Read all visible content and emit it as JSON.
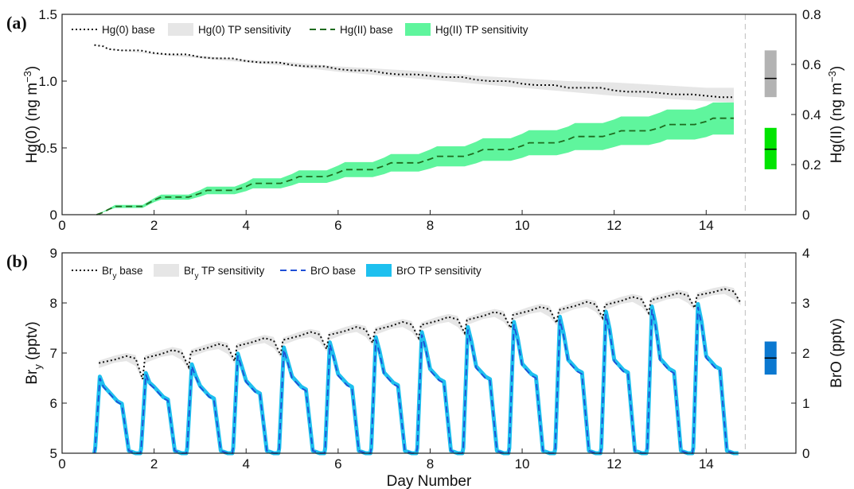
{
  "panels": [
    {
      "label": "(a)",
      "ylabel_left": "Hg(0) (ng m⁻³)",
      "ylabel_right": "Hg(II) (ng m⁻³)"
    },
    {
      "label": "(b)",
      "ylabel_left": "Br_y (pptv)",
      "ylabel_right": "BrO (pptv)"
    }
  ],
  "xlabel": "Day Number",
  "colors": {
    "hg0_base": "#111111",
    "hg0_sens": "#e6e6e6",
    "hg2_base": "#1e6b1e",
    "hg2_sens": "#5ff59d",
    "bry_base": "#111111",
    "bry_sens": "#e6e6e6",
    "bro_base": "#1f4fd6",
    "bro_sens": "#1ec0ef",
    "hg0_bar": "#b3b3b3",
    "hg2_bar": "#00e400",
    "bro_bar": "#0b78d0"
  },
  "chart_data": [
    {
      "type": "line",
      "xlim": [
        0,
        15.95
      ],
      "xticks": [
        0,
        2,
        4,
        6,
        8,
        10,
        12,
        14
      ],
      "ylim_left": [
        0,
        1.5
      ],
      "yticks_left": [
        "0",
        "0.5",
        "1.0",
        "1.5"
      ],
      "yticks_left_values": [
        0,
        0.5,
        1.0,
        1.5
      ],
      "ylim_right": [
        0,
        0.8
      ],
      "yticks_right": [
        "0",
        "0.2",
        "0.4",
        "0.6",
        "0.8"
      ],
      "yticks_right_values": [
        0,
        0.2,
        0.4,
        0.6,
        0.8
      ],
      "legend": [
        "Hg(0) base",
        "Hg(0) TP sensitivity",
        "Hg(II) base",
        "Hg(II) TP sensitivity"
      ],
      "legend_position": "top",
      "series": [
        {
          "name": "Hg(0) base",
          "axis": "left",
          "x": [
            0.7,
            0.9,
            1.0,
            1.3,
            1.7,
            2.0,
            2.3,
            2.7,
            3.0,
            3.3,
            3.7,
            4.0,
            4.3,
            4.7,
            5.0,
            5.3,
            5.7,
            6.0,
            6.3,
            6.7,
            7.0,
            7.3,
            7.7,
            8.0,
            8.3,
            8.7,
            9.0,
            9.3,
            9.7,
            10.0,
            10.3,
            10.7,
            11.0,
            11.3,
            11.7,
            12.0,
            12.3,
            12.7,
            13.0,
            13.3,
            13.7,
            14.0,
            14.3,
            14.6
          ],
          "y": [
            1.27,
            1.26,
            1.24,
            1.23,
            1.23,
            1.21,
            1.2,
            1.2,
            1.18,
            1.17,
            1.17,
            1.15,
            1.14,
            1.14,
            1.12,
            1.11,
            1.11,
            1.09,
            1.08,
            1.08,
            1.06,
            1.05,
            1.05,
            1.04,
            1.03,
            1.03,
            1.01,
            1.0,
            1.0,
            0.98,
            0.97,
            0.97,
            0.95,
            0.95,
            0.95,
            0.93,
            0.92,
            0.92,
            0.91,
            0.9,
            0.9,
            0.89,
            0.88,
            0.88
          ]
        },
        {
          "name": "Hg(0) TP sensitivity",
          "axis": "left",
          "band": true,
          "x": [
            0.7,
            1.0,
            2.0,
            3.0,
            4.0,
            5.0,
            6.0,
            7.0,
            8.0,
            9.0,
            10.0,
            11.0,
            12.0,
            13.0,
            14.0,
            14.6
          ],
          "low": [
            1.27,
            1.24,
            1.2,
            1.17,
            1.14,
            1.11,
            1.07,
            1.04,
            1.01,
            0.98,
            0.95,
            0.92,
            0.89,
            0.87,
            0.85,
            0.84
          ],
          "high": [
            1.27,
            1.24,
            1.21,
            1.19,
            1.16,
            1.14,
            1.11,
            1.09,
            1.07,
            1.04,
            1.02,
            1.0,
            0.99,
            0.97,
            0.95,
            0.95
          ]
        },
        {
          "name": "Hg(II) base",
          "axis": "right",
          "x": [
            0.75,
            0.9,
            1.0,
            1.15,
            1.75,
            2.0,
            2.15,
            2.75,
            3.0,
            3.15,
            3.75,
            4.0,
            4.15,
            4.75,
            5.0,
            5.15,
            5.75,
            6.0,
            6.15,
            6.75,
            7.0,
            7.15,
            7.75,
            8.0,
            8.15,
            8.75,
            9.0,
            9.15,
            9.75,
            10.0,
            10.15,
            10.75,
            11.0,
            11.15,
            11.75,
            12.0,
            12.15,
            12.75,
            13.0,
            13.15,
            13.75,
            14.0,
            14.15,
            14.6
          ],
          "y": [
            0.0,
            0.01,
            0.02,
            0.033,
            0.033,
            0.058,
            0.07,
            0.07,
            0.085,
            0.097,
            0.097,
            0.112,
            0.125,
            0.125,
            0.14,
            0.152,
            0.152,
            0.168,
            0.18,
            0.18,
            0.195,
            0.207,
            0.207,
            0.222,
            0.233,
            0.233,
            0.248,
            0.26,
            0.26,
            0.275,
            0.287,
            0.287,
            0.3,
            0.312,
            0.312,
            0.325,
            0.335,
            0.335,
            0.348,
            0.36,
            0.36,
            0.372,
            0.385,
            0.385
          ]
        },
        {
          "name": "Hg(II) TP sensitivity",
          "axis": "right",
          "band": true,
          "x": [
            0.75,
            1.0,
            1.15,
            1.75,
            2.0,
            2.15,
            2.75,
            3.0,
            3.15,
            3.75,
            4.0,
            4.15,
            4.75,
            5.0,
            5.15,
            5.75,
            6.0,
            6.15,
            6.75,
            7.0,
            7.15,
            7.75,
            8.0,
            8.15,
            8.75,
            9.0,
            9.15,
            9.75,
            10.0,
            10.15,
            10.75,
            11.0,
            11.15,
            11.75,
            12.0,
            12.15,
            12.75,
            13.0,
            13.15,
            13.75,
            14.0,
            14.15,
            14.6
          ],
          "low": [
            0.0,
            0.017,
            0.027,
            0.027,
            0.05,
            0.06,
            0.06,
            0.072,
            0.082,
            0.082,
            0.094,
            0.105,
            0.105,
            0.117,
            0.127,
            0.127,
            0.14,
            0.15,
            0.15,
            0.162,
            0.172,
            0.172,
            0.184,
            0.193,
            0.193,
            0.205,
            0.215,
            0.215,
            0.227,
            0.237,
            0.237,
            0.248,
            0.258,
            0.258,
            0.27,
            0.278,
            0.278,
            0.289,
            0.3,
            0.3,
            0.31,
            0.32,
            0.32
          ],
          "high": [
            0.0,
            0.023,
            0.039,
            0.039,
            0.066,
            0.08,
            0.08,
            0.098,
            0.112,
            0.112,
            0.13,
            0.145,
            0.145,
            0.163,
            0.177,
            0.177,
            0.196,
            0.21,
            0.21,
            0.228,
            0.242,
            0.242,
            0.26,
            0.273,
            0.273,
            0.291,
            0.305,
            0.305,
            0.323,
            0.337,
            0.337,
            0.352,
            0.366,
            0.366,
            0.38,
            0.392,
            0.392,
            0.408,
            0.42,
            0.42,
            0.434,
            0.448,
            0.448
          ]
        }
      ],
      "summary_bars": [
        {
          "name": "Hg(0) TP sensitivity",
          "axis": "left",
          "x": 15.4,
          "low": 0.88,
          "high": 1.23,
          "base": 1.02
        },
        {
          "name": "Hg(II) TP sensitivity",
          "axis": "left",
          "x": 15.4,
          "low": 0.34,
          "high": 0.65,
          "base": 0.49
        }
      ],
      "vline_x": 14.85
    },
    {
      "type": "line",
      "xlim": [
        0,
        15.95
      ],
      "xticks": [
        0,
        2,
        4,
        6,
        8,
        10,
        12,
        14
      ],
      "ylim_left": [
        5,
        9
      ],
      "yticks_left": [
        "5",
        "6",
        "7",
        "8",
        "9"
      ],
      "yticks_left_values": [
        5,
        6,
        7,
        8,
        9
      ],
      "ylim_right": [
        0,
        4
      ],
      "yticks_right": [
        "0",
        "1",
        "2",
        "3",
        "4"
      ],
      "yticks_right_values": [
        0,
        1,
        2,
        3,
        4
      ],
      "legend": [
        "Br_y base",
        "Br_y TP sensitivity",
        "BrO base",
        "BrO TP sensitivity"
      ],
      "legend_position": "top",
      "bry_day_start": [
        6.8,
        6.9,
        7.02,
        7.14,
        7.26,
        7.36,
        7.46,
        7.56,
        7.66,
        7.76,
        7.86,
        7.96,
        8.06,
        8.15
      ],
      "bry_day_peak": [
        6.94,
        7.06,
        7.18,
        7.3,
        7.42,
        7.52,
        7.62,
        7.72,
        7.82,
        7.92,
        8.02,
        8.12,
        8.2,
        8.28
      ],
      "bry_dip": [
        6.48,
        6.72,
        6.84,
        6.96,
        7.08,
        7.2,
        7.3,
        7.4,
        7.5,
        7.6,
        7.7,
        7.8,
        7.9,
        8.0
      ],
      "bro_peak": [
        1.5,
        1.57,
        1.74,
        1.95,
        2.07,
        2.17,
        2.27,
        2.37,
        2.47,
        2.57,
        2.67,
        2.77,
        2.87,
        2.92
      ],
      "bro_plateau": [
        0.97,
        1.05,
        1.07,
        1.17,
        1.25,
        1.3,
        1.33,
        1.4,
        1.45,
        1.5,
        1.58,
        1.58,
        1.6,
        1.65
      ],
      "summary_bars": [
        {
          "name": "BrO TP sensitivity",
          "axis": "right",
          "x": 15.4,
          "low": 1.57,
          "high": 2.23,
          "base": 1.9
        }
      ],
      "vline_x": 14.85
    }
  ]
}
